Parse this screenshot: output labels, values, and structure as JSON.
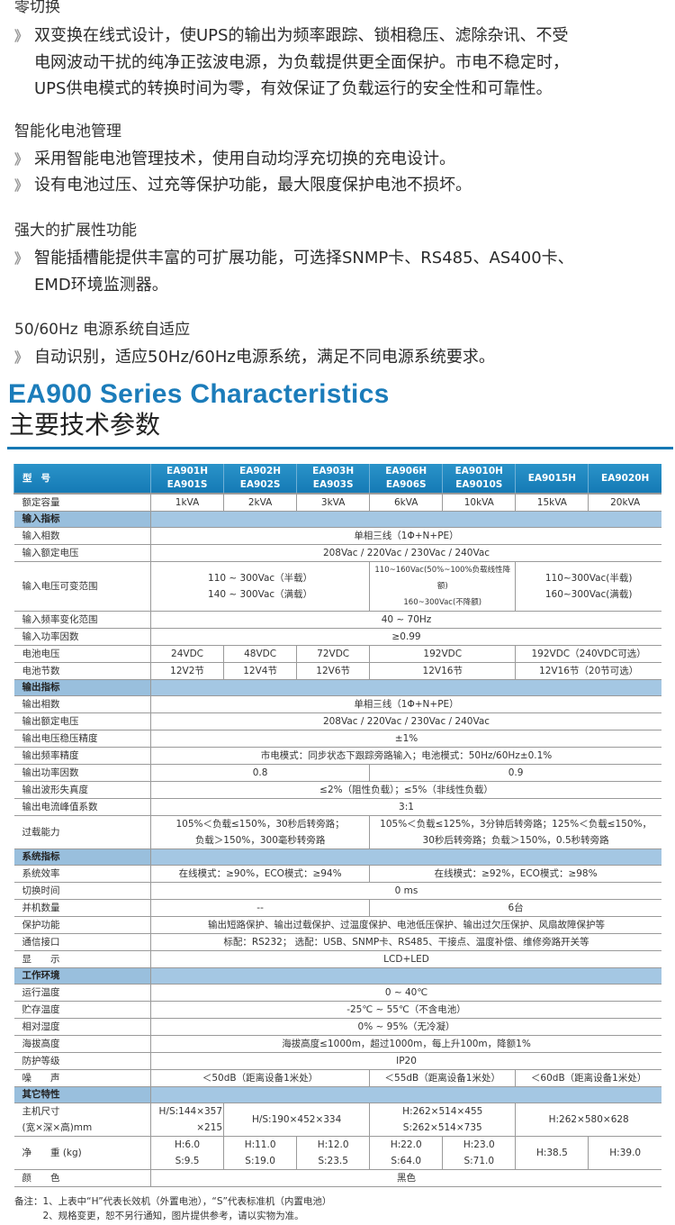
{
  "features": [
    {
      "title": "零切换",
      "bullets": [
        [
          "双变换在线式设计，使UPS的输出为频率跟踪、锁相稳压、滤除杂讯、不受",
          "电网波动干扰的纯净正弦波电源，为负载提供更全面保护。市电不稳定时，",
          "UPS供电模式的转换时间为零，有效保证了负载运行的安全性和可靠性。"
        ]
      ]
    },
    {
      "title": "智能化电池管理",
      "bullets": [
        [
          "采用智能电池管理技术，使用自动均浮充切换的充电设计。"
        ],
        [
          "设有电池过压、过充等保护功能，最大限度保护电池不损坏。"
        ]
      ]
    },
    {
      "title": "强大的扩展性功能",
      "bullets": [
        [
          "智能插槽能提供丰富的可扩展功能，可选择SNMP卡、RS485、AS400卡、",
          "EMD环境监测器。"
        ]
      ]
    },
    {
      "title": "50/60Hz 电源系统自适应",
      "bullets": [
        [
          "自动识别，适应50Hz/60Hz电源系统，满足不同电源系统要求。"
        ]
      ]
    }
  ],
  "bullet_mark": "》",
  "heading": {
    "en": "EA900 Series Characteristics",
    "cn": "主要技术参数"
  },
  "colors": {
    "accent": "#1b7cba",
    "header_bg": "#1e84bf",
    "section_bg": "#a4c7e3"
  },
  "table": {
    "header": {
      "label": "型号",
      "models": [
        "EA901H\nEA901S",
        "EA902H\nEA902S",
        "EA903H\nEA903S",
        "EA906H\nEA906S",
        "EA9010H\nEA9010S",
        "EA9015H",
        "EA9020H"
      ]
    },
    "rows": [
      {
        "label": "额定容量",
        "cells": [
          {
            "t": "1kVA"
          },
          {
            "t": "2kVA"
          },
          {
            "t": "3kVA"
          },
          {
            "t": "6kVA"
          },
          {
            "t": "10kVA"
          },
          {
            "t": "15kVA"
          },
          {
            "t": "20kVA"
          }
        ]
      },
      {
        "section": "输入指标"
      },
      {
        "label": "输入相数",
        "cells": [
          {
            "t": "单相三线（1Φ+N+PE）",
            "s": 7
          }
        ]
      },
      {
        "label": "输入额定电压",
        "cells": [
          {
            "t": "208Vac / 220Vac / 230Vac / 240Vac",
            "s": 7
          }
        ]
      },
      {
        "label": "输入电压可变范围",
        "cells": [
          {
            "t": "110 ~ 300Vac（半载）\n140 ~ 300Vac（满载）",
            "s": 3
          },
          {
            "t": "110~160Vac(50%~100%负载线性降额)\n160~300Vac(不降额)",
            "s": 2,
            "small": true
          },
          {
            "t": "110~300Vac(半载)\n160~300Vac(满载)",
            "s": 2
          }
        ]
      },
      {
        "label": "输入频率变化范围",
        "cells": [
          {
            "t": "40 ~ 70Hz",
            "s": 7
          }
        ]
      },
      {
        "label": "输入功率因数",
        "cells": [
          {
            "t": "≥0.99",
            "s": 7
          }
        ]
      },
      {
        "label": "电池电压",
        "cells": [
          {
            "t": "24VDC"
          },
          {
            "t": "48VDC"
          },
          {
            "t": "72VDC"
          },
          {
            "t": "192VDC",
            "s": 2
          },
          {
            "t": "192VDC（240VDC可选）",
            "s": 2
          }
        ]
      },
      {
        "label": "电池节数",
        "cells": [
          {
            "t": "12V2节"
          },
          {
            "t": "12V4节"
          },
          {
            "t": "12V6节"
          },
          {
            "t": "12V16节",
            "s": 2
          },
          {
            "t": "12V16节（20节可选）",
            "s": 2
          }
        ]
      },
      {
        "section": "输出指标"
      },
      {
        "label": "输出相数",
        "cells": [
          {
            "t": "单相三线（1Φ+N+PE）",
            "s": 7
          }
        ]
      },
      {
        "label": "输出额定电压",
        "cells": [
          {
            "t": "208Vac / 220Vac / 230Vac / 240Vac",
            "s": 7
          }
        ]
      },
      {
        "label": "输出电压稳压精度",
        "cells": [
          {
            "t": "±1%",
            "s": 7
          }
        ]
      },
      {
        "label": "输出频率精度",
        "cells": [
          {
            "t": "市电模式：同步状态下跟踪旁路输入；电池模式：50Hz/60Hz±0.1%",
            "s": 7
          }
        ]
      },
      {
        "label": "输出功率因数",
        "cells": [
          {
            "t": "0.8",
            "s": 3
          },
          {
            "t": "0.9",
            "s": 4
          }
        ]
      },
      {
        "label": "输出波形失真度",
        "cells": [
          {
            "t": "≤2%（阻性负载）；≤5%（非线性负载）",
            "s": 7
          }
        ]
      },
      {
        "label": "输出电流峰值系数",
        "cells": [
          {
            "t": "3:1",
            "s": 7
          }
        ]
      },
      {
        "label": "过载能力",
        "cells": [
          {
            "t": "105%＜负载≤150%，30秒后转旁路；\n负载＞150%，300毫秒转旁路",
            "s": 3
          },
          {
            "t": "105%＜负载≤125%，3分钟后转旁路；125%＜负载≤150%，\n30秒后转旁路；负载＞150%，0.5秒转旁路",
            "s": 4
          }
        ]
      },
      {
        "section": "系统指标"
      },
      {
        "label": "系统效率",
        "cells": [
          {
            "t": "在线模式：≥90%，ECO模式：≥94%",
            "s": 3
          },
          {
            "t": "在线模式：≥92%，ECO模式：≥98%",
            "s": 4
          }
        ]
      },
      {
        "label": "切换时间",
        "cells": [
          {
            "t": "0 ms",
            "s": 7
          }
        ]
      },
      {
        "label": "并机数量",
        "cells": [
          {
            "t": "--",
            "s": 3
          },
          {
            "t": "6台",
            "s": 4
          }
        ]
      },
      {
        "label": "保护功能",
        "cells": [
          {
            "t": "输出短路保护、输出过载保护、过温度保护、电池低压保护、输出过欠压保护、风扇故障保护等",
            "s": 7
          }
        ]
      },
      {
        "label": "通信接口",
        "cells": [
          {
            "t": "标配：RS232；  选配：USB、SNMP卡、RS485、干接点、温度补偿、维修旁路开关等",
            "s": 7
          }
        ]
      },
      {
        "label": "显　　示",
        "cells": [
          {
            "t": "LCD+LED",
            "s": 7
          }
        ]
      },
      {
        "section": "工作环境"
      },
      {
        "label": "运行温度",
        "cells": [
          {
            "t": "0 ~ 40℃",
            "s": 7
          }
        ]
      },
      {
        "label": "贮存温度",
        "cells": [
          {
            "t": "-25℃ ~ 55℃（不含电池）",
            "s": 7
          }
        ]
      },
      {
        "label": "相对湿度",
        "cells": [
          {
            "t": "0% ~ 95%（无冷凝）",
            "s": 7
          }
        ]
      },
      {
        "label": "海拔高度",
        "cells": [
          {
            "t": "海拔高度≤1000m，超过1000m，每上升100m，降额1%",
            "s": 7
          }
        ]
      },
      {
        "label": "防护等级",
        "cells": [
          {
            "t": "IP20",
            "s": 7
          }
        ]
      },
      {
        "label": "噪　　声",
        "cells": [
          {
            "t": "＜50dB（距离设备1米处）",
            "s": 3
          },
          {
            "t": "＜55dB（距离设备1米处）",
            "s": 2
          },
          {
            "t": "＜60dB（距离设备1米处）",
            "s": 2
          }
        ]
      },
      {
        "section": "其它特性"
      },
      {
        "label": "主机尺寸\n(宽×深×高)mm",
        "cells": [
          {
            "t": "H/S:144×357\n×215"
          },
          {
            "t": "H/S:190×452×334",
            "s": 2
          },
          {
            "t": "H:262×514×455\nS:262×514×735",
            "s": 2
          },
          {
            "t": "H:262×580×628",
            "s": 2
          }
        ]
      },
      {
        "label": "净　　重 (kg)",
        "cells": [
          {
            "t": "H:6.0\nS:9.5"
          },
          {
            "t": "H:11.0\nS:19.0"
          },
          {
            "t": "H:12.0\nS:23.5"
          },
          {
            "t": "H:22.0\nS:64.0"
          },
          {
            "t": "H:23.0\nS:71.0"
          },
          {
            "t": "H:38.5"
          },
          {
            "t": "H:39.0"
          }
        ]
      },
      {
        "label": "颜　　色",
        "cells": [
          {
            "t": "黑色",
            "s": 7
          }
        ]
      }
    ]
  },
  "notes": [
    "备注：1、上表中“H”代表长效机（外置电池），“S”代表标准机（内置电池）",
    "　　　2、规格变更，恕不另行通知，图片提供参考，请以实物为准。"
  ]
}
